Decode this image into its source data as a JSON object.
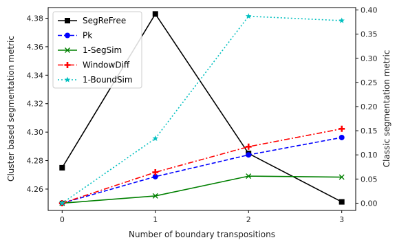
{
  "chart_data": {
    "type": "line",
    "xlabel": "Number of boundary transpositions",
    "ylabel_left": "Cluster based segmentation metric",
    "ylabel_right": "Classic segmentation metric",
    "x": [
      0,
      1,
      2,
      3
    ],
    "x_ticks": [
      "0",
      "1",
      "2",
      "3"
    ],
    "ylim_left": [
      4.245,
      4.3875
    ],
    "ylim_right": [
      -0.015,
      0.405
    ],
    "y_ticks_left": [
      "4.26",
      "4.28",
      "4.30",
      "4.32",
      "4.34",
      "4.36",
      "4.38"
    ],
    "y_ticks_right": [
      "0.00",
      "0.05",
      "0.10",
      "0.15",
      "0.20",
      "0.25",
      "0.30",
      "0.35",
      "0.40"
    ],
    "grid": false,
    "legend_position": "top-left",
    "series": [
      {
        "name": "SegReFree",
        "axis": "left",
        "values": [
          4.275,
          4.383,
          4.285,
          4.251
        ],
        "color": "#000000",
        "dash": "solid",
        "marker": "square"
      },
      {
        "name": "Pk",
        "axis": "right",
        "values": [
          0.0,
          0.055,
          0.1,
          0.136
        ],
        "color": "#0000ff",
        "dash": "dashed",
        "marker": "circle"
      },
      {
        "name": "1-SegSim",
        "axis": "right",
        "values": [
          0.0,
          0.015,
          0.056,
          0.054
        ],
        "color": "#008000",
        "dash": "solid",
        "marker": "x"
      },
      {
        "name": "WindowDiff",
        "axis": "right",
        "values": [
          0.0,
          0.064,
          0.117,
          0.154
        ],
        "color": "#ff0000",
        "dash": "dashdot",
        "marker": "plus"
      },
      {
        "name": "1-BoundSim",
        "axis": "right",
        "values": [
          0.0,
          0.134,
          0.387,
          0.378
        ],
        "color": "#00bfbf",
        "dash": "dotted",
        "marker": "star"
      }
    ]
  }
}
